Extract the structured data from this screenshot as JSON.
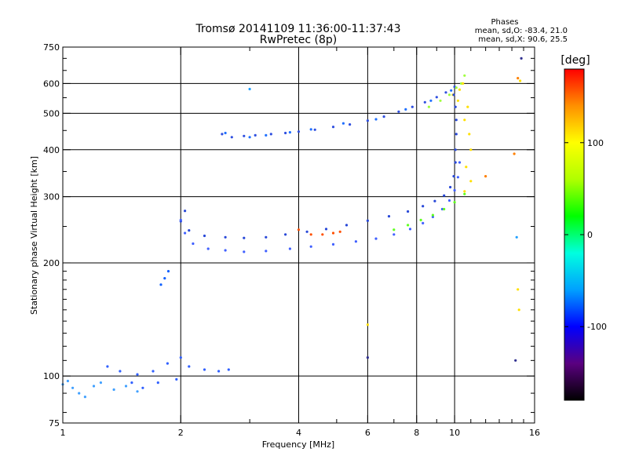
{
  "chart_data": {
    "type": "scatter",
    "title": "Tromsø 20141109 11:36:00-11:37:43",
    "subtitle": "RwPretec (8p)",
    "xlabel": "Frequency [MHz]",
    "ylabel": "Stationary phase Virtual Height [km]",
    "x_scale": "log",
    "y_scale": "log",
    "xlim": [
      1,
      16
    ],
    "ylim": [
      75,
      750
    ],
    "x_ticks": [
      1,
      2,
      4,
      6,
      8,
      10,
      16
    ],
    "x_minor_ticks": [
      3,
      5,
      7,
      9,
      11,
      12,
      13,
      14,
      15
    ],
    "y_ticks": [
      75,
      100,
      200,
      300,
      400,
      500,
      600,
      750
    ],
    "grid": true,
    "phases_box": {
      "title": "Phases",
      "line1": "mean, sd,O: -83.4, 21.0",
      "line2": "mean, sd,X:  90.6, 25.5"
    },
    "colorbar": {
      "label": "[deg]",
      "range": [
        -180,
        180
      ],
      "ticks": [
        100,
        0,
        -100
      ],
      "colors": [
        "#000000",
        "#5a0080",
        "#0000ff",
        "#00a0ff",
        "#00ffe0",
        "#00ff00",
        "#b0ff00",
        "#ffff00",
        "#ff9000",
        "#ff0000"
      ]
    },
    "series": [
      {
        "color": "#3050e0",
        "points": [
          [
            2.55,
            440
          ],
          [
            2.7,
            432
          ],
          [
            2.9,
            435
          ],
          [
            3.1,
            437
          ],
          [
            3.4,
            440
          ],
          [
            3.7,
            443
          ],
          [
            4.0,
            447
          ],
          [
            4.4,
            452
          ],
          [
            4.9,
            460
          ],
          [
            5.4,
            467
          ],
          [
            6.0,
            478
          ],
          [
            6.6,
            490
          ],
          [
            7.2,
            505
          ],
          [
            7.8,
            520
          ],
          [
            8.4,
            535
          ],
          [
            9.0,
            552
          ],
          [
            9.5,
            568
          ],
          [
            10.0,
            588
          ]
        ]
      },
      {
        "color": "#2070ff",
        "points": [
          [
            2.6,
            443
          ],
          [
            3.0,
            432
          ],
          [
            3.3,
            437
          ],
          [
            3.8,
            445
          ],
          [
            4.3,
            453
          ],
          [
            5.2,
            470
          ],
          [
            6.3,
            482
          ],
          [
            7.5,
            512
          ],
          [
            8.7,
            540
          ],
          [
            9.8,
            575
          ]
        ]
      },
      {
        "color": "#a0ff40",
        "points": [
          [
            8.6,
            520
          ],
          [
            9.2,
            540
          ],
          [
            9.7,
            560
          ],
          [
            10.1,
            585
          ],
          [
            10.4,
            600
          ],
          [
            10.6,
            630
          ]
        ]
      },
      {
        "color": "#ffe000",
        "points": [
          [
            9.9,
            560
          ],
          [
            10.3,
            578
          ],
          [
            10.5,
            600
          ],
          [
            10.2,
            540
          ],
          [
            10.8,
            520
          ],
          [
            10.6,
            480
          ],
          [
            10.9,
            440
          ],
          [
            11.0,
            400
          ],
          [
            10.7,
            360
          ],
          [
            11.0,
            330
          ],
          [
            10.6,
            310
          ]
        ]
      },
      {
        "color": "#2848d8",
        "points": [
          [
            9.95,
            560
          ],
          [
            10.05,
            520
          ],
          [
            10.1,
            480
          ],
          [
            10.1,
            440
          ],
          [
            10.05,
            400
          ],
          [
            10.05,
            370
          ],
          [
            9.95,
            340
          ],
          [
            9.75,
            318
          ],
          [
            9.4,
            302
          ],
          [
            8.9,
            292
          ],
          [
            8.3,
            283
          ],
          [
            7.6,
            274
          ],
          [
            6.8,
            266
          ],
          [
            6.0,
            259
          ],
          [
            5.3,
            252
          ],
          [
            4.7,
            246
          ],
          [
            4.2,
            242
          ],
          [
            3.7,
            238
          ],
          [
            3.3,
            234
          ],
          [
            2.9,
            233
          ],
          [
            2.6,
            234
          ],
          [
            2.3,
            236
          ],
          [
            2.1,
            244
          ],
          [
            2.0,
            258
          ],
          [
            2.05,
            275
          ]
        ]
      },
      {
        "color": "#4060ff",
        "points": [
          [
            2.0,
            260
          ],
          [
            2.05,
            240
          ],
          [
            2.15,
            225
          ],
          [
            2.35,
            218
          ],
          [
            2.6,
            216
          ],
          [
            2.9,
            214
          ],
          [
            3.3,
            215
          ],
          [
            3.8,
            218
          ],
          [
            4.3,
            221
          ],
          [
            4.9,
            224
          ],
          [
            5.6,
            228
          ],
          [
            6.3,
            232
          ],
          [
            7.0,
            238
          ],
          [
            7.7,
            246
          ],
          [
            8.3,
            255
          ],
          [
            8.8,
            265
          ],
          [
            9.3,
            278
          ],
          [
            9.7,
            293
          ],
          [
            10.0,
            312
          ],
          [
            10.2,
            338
          ],
          [
            10.3,
            370
          ]
        ]
      },
      {
        "color": "#60ff20",
        "points": [
          [
            7.0,
            245
          ],
          [
            7.6,
            252
          ],
          [
            8.2,
            260
          ],
          [
            8.8,
            268
          ],
          [
            9.4,
            278
          ],
          [
            10.0,
            290
          ],
          [
            10.6,
            305
          ]
        ]
      },
      {
        "color": "#ff5000",
        "points": [
          [
            4.0,
            245
          ],
          [
            4.3,
            238
          ],
          [
            4.6,
            238
          ],
          [
            4.9,
            240
          ],
          [
            5.1,
            242
          ]
        ]
      },
      {
        "color": "#1060ff",
        "points": [
          [
            1.78,
            175
          ],
          [
            1.82,
            182
          ],
          [
            1.86,
            190
          ]
        ]
      },
      {
        "color": "#3060ff",
        "points": [
          [
            1.3,
            106
          ],
          [
            1.4,
            103
          ],
          [
            1.55,
            101
          ],
          [
            1.7,
            103
          ],
          [
            1.85,
            108
          ],
          [
            2.0,
            112
          ],
          [
            2.1,
            106
          ],
          [
            2.3,
            104
          ],
          [
            2.5,
            103
          ],
          [
            2.65,
            104
          ],
          [
            1.95,
            98
          ],
          [
            1.75,
            96
          ],
          [
            1.6,
            93
          ],
          [
            1.5,
            96
          ]
        ]
      },
      {
        "color": "#40a0ff",
        "points": [
          [
            1.0,
            95
          ],
          [
            1.03,
            97
          ],
          [
            1.06,
            93
          ],
          [
            1.1,
            90
          ],
          [
            1.14,
            88
          ],
          [
            1.2,
            94
          ],
          [
            1.25,
            96
          ],
          [
            1.35,
            92
          ],
          [
            1.45,
            94
          ],
          [
            1.55,
            91
          ]
        ]
      },
      {
        "color": "#ff8000",
        "points": [
          [
            14.5,
            620
          ],
          [
            14.2,
            390
          ],
          [
            12.0,
            340
          ]
        ]
      },
      {
        "color": "#ffe000",
        "points": [
          [
            14.7,
            610
          ],
          [
            14.5,
            170
          ],
          [
            14.6,
            150
          ],
          [
            6.0,
            137
          ]
        ]
      },
      {
        "color": "#303090",
        "points": [
          [
            14.8,
            700
          ],
          [
            14.3,
            110
          ],
          [
            6.0,
            112
          ]
        ]
      },
      {
        "color": "#20a0ff",
        "points": [
          [
            3.0,
            580
          ],
          [
            14.4,
            234
          ]
        ]
      }
    ]
  }
}
